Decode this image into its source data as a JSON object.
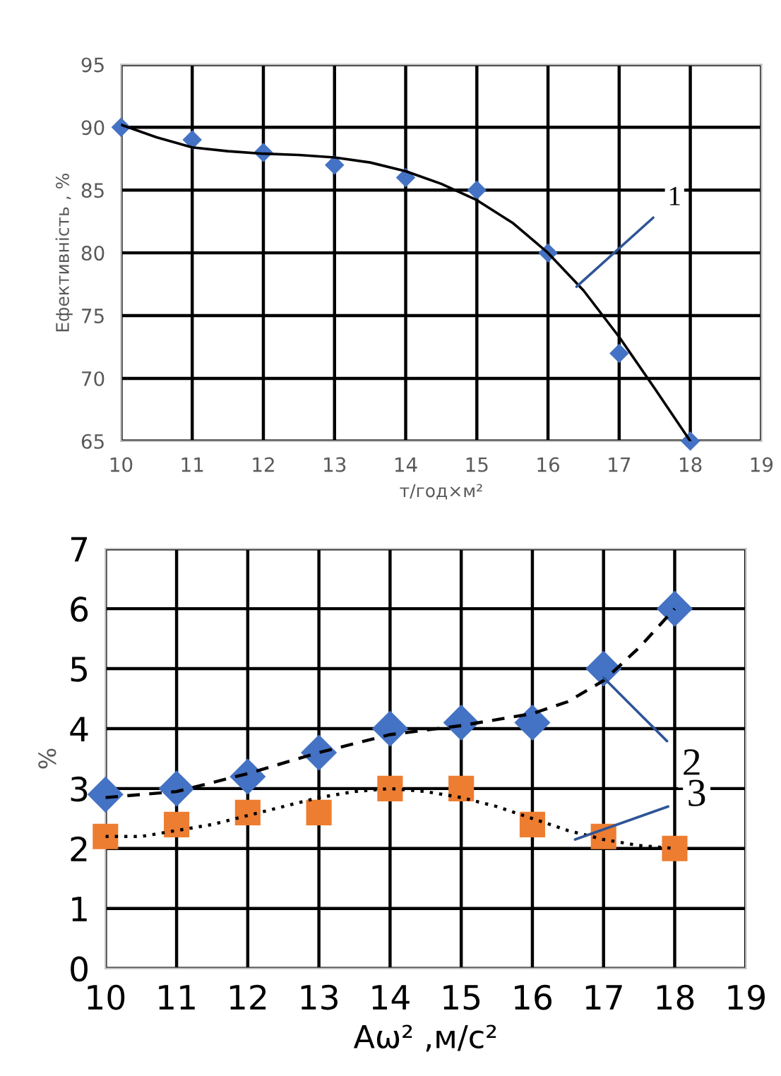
{
  "chart_data": [
    {
      "type": "scatter",
      "xlabel": "т/год×м²",
      "ylabel": "Ефективність , %",
      "xlim": [
        10,
        19
      ],
      "ylim": [
        65,
        95
      ],
      "xticks": [
        10,
        11,
        12,
        13,
        14,
        15,
        16,
        17,
        18,
        19
      ],
      "yticks": [
        65,
        70,
        75,
        80,
        85,
        90,
        95
      ],
      "grid": true,
      "x": [
        10,
        11,
        12,
        13,
        14,
        15,
        16,
        17,
        18
      ],
      "series": [
        {
          "color": "#4472c4",
          "marker": "diamond",
          "values": [
            90,
            89,
            88,
            87,
            86,
            85,
            80,
            72,
            65
          ]
        },
        {
          "type": "line",
          "color": "#000000",
          "marker": "none",
          "line_style": "solid",
          "x": [
            10,
            10.5,
            11,
            11.5,
            12,
            12.5,
            13,
            13.5,
            14,
            14.5,
            15,
            15.5,
            16,
            16.5,
            17,
            17.5,
            18
          ],
          "values": [
            90.2,
            89.2,
            88.4,
            88.1,
            87.9,
            87.8,
            87.6,
            87.2,
            86.5,
            85.5,
            84.2,
            82.4,
            80.0,
            77.0,
            73.3,
            69.2,
            65.0
          ]
        }
      ],
      "annotations": [
        {
          "text": "1",
          "x": 16.4,
          "y": 77.3
        }
      ]
    },
    {
      "type": "scatter",
      "xlabel": "Aω² ,м/с²",
      "ylabel": "%",
      "xlim": [
        10,
        19
      ],
      "ylim": [
        0,
        7
      ],
      "xticks": [
        10,
        11,
        12,
        13,
        14,
        15,
        16,
        17,
        18,
        19
      ],
      "yticks": [
        0,
        1,
        2,
        3,
        4,
        5,
        6,
        7
      ],
      "grid": true,
      "x": [
        10,
        11,
        12,
        13,
        14,
        15,
        16,
        17,
        18
      ],
      "series": [
        {
          "color": "#4472c4",
          "marker": "diamond",
          "values": [
            2.9,
            3.0,
            3.2,
            3.6,
            4.0,
            4.1,
            4.1,
            5.0,
            6.0
          ]
        },
        {
          "color": "#ed7d31",
          "marker": "square",
          "values": [
            2.2,
            2.4,
            2.6,
            2.6,
            3.0,
            3.0,
            2.4,
            2.2,
            2.0
          ]
        },
        {
          "type": "line",
          "color": "#000000",
          "marker": "none",
          "line_style": "dashed",
          "x": [
            10,
            11,
            12,
            13,
            14,
            15,
            16,
            16.5,
            17,
            17.5,
            18
          ],
          "values": [
            2.85,
            2.95,
            3.25,
            3.6,
            3.9,
            4.05,
            4.25,
            4.45,
            4.8,
            5.35,
            6.0
          ]
        },
        {
          "type": "line",
          "color": "#000000",
          "marker": "none",
          "line_style": "dotted",
          "x": [
            10,
            10.5,
            11,
            11.5,
            12,
            12.5,
            13,
            13.5,
            14,
            14.5,
            15,
            15.5,
            16,
            16.5,
            17,
            17.5,
            18
          ],
          "values": [
            2.2,
            2.2,
            2.3,
            2.4,
            2.55,
            2.7,
            2.85,
            2.95,
            3.0,
            2.95,
            2.85,
            2.7,
            2.5,
            2.3,
            2.15,
            2.05,
            2.0
          ]
        }
      ],
      "annotations": [
        {
          "text": "2",
          "x": 17.0,
          "y": 4.85
        },
        {
          "text": "3",
          "x": 16.6,
          "y": 2.15
        }
      ]
    }
  ]
}
